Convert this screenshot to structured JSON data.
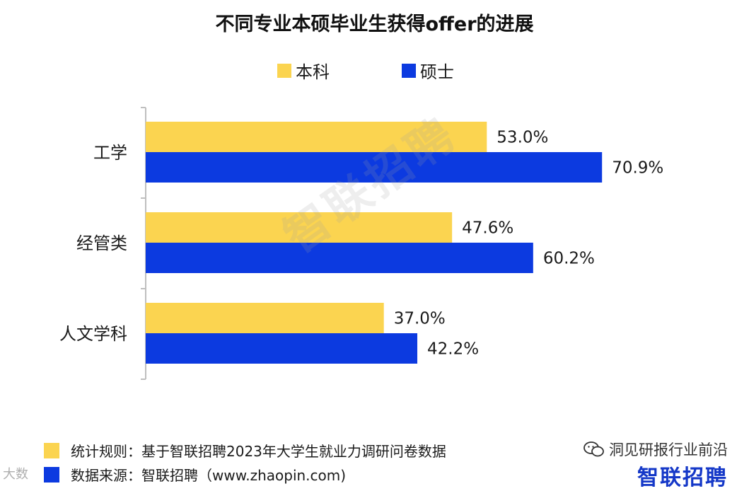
{
  "title": "不同专业本硕毕业生获得offer的进展",
  "colors": {
    "undergrad": "#FBD450",
    "master": "#0C3AE0",
    "axis": "#BFBFBF"
  },
  "chart_data": {
    "type": "bar",
    "orientation": "horizontal",
    "title": "不同专业本硕毕业生获得offer的进展",
    "categories": [
      "工学",
      "经管类",
      "人文学科"
    ],
    "series": [
      {
        "name": "本科",
        "values": [
          53.0,
          47.6,
          37.0
        ],
        "labels": [
          "53.0%",
          "47.6%",
          "37.0%"
        ],
        "color": "#FBD450"
      },
      {
        "name": "硕士",
        "values": [
          70.9,
          60.2,
          42.2
        ],
        "labels": [
          "70.9%",
          "60.2%",
          "42.2%"
        ],
        "color": "#0C3AE0"
      }
    ],
    "xlim": [
      0,
      100
    ],
    "legend_position": "top",
    "grid": false
  },
  "watermark": "智联招聘",
  "footer": {
    "rule_label": "统计规则：基于智联招聘2023年大学生就业力调研问卷数据",
    "source_label": "数据来源：智联招聘（www.zhaopin.com)"
  },
  "brand": {
    "wechat_text": "洞见研报行业前沿",
    "logo_text": "智联招聘",
    "corner_text": "大数"
  }
}
